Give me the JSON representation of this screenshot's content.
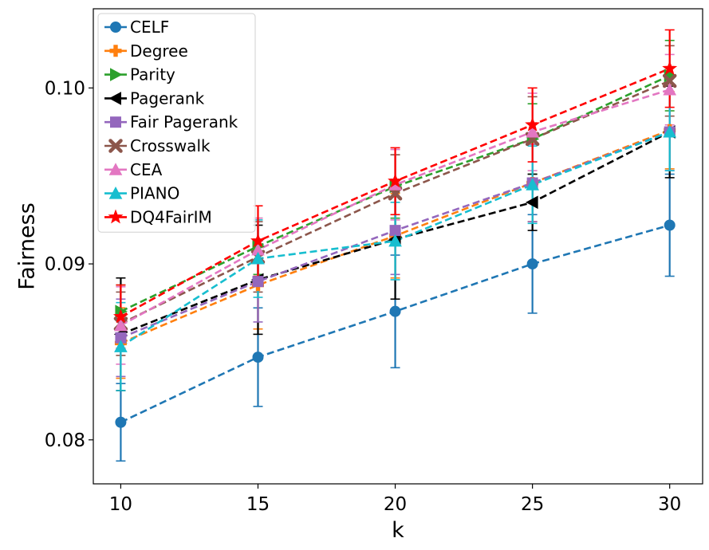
{
  "chart_data": {
    "type": "line",
    "title": "",
    "xlabel": "k",
    "ylabel": "Fairness",
    "x": [
      10,
      15,
      20,
      25,
      30
    ],
    "x_ticks": [
      10,
      15,
      20,
      25,
      30
    ],
    "y_ticks": [
      0.08,
      0.09,
      0.1
    ],
    "y_tick_labels": [
      "0.08",
      "0.09",
      "0.10"
    ],
    "xlim": [
      9.0,
      31.2
    ],
    "ylim": [
      0.0775,
      0.1045
    ],
    "legend_position": "top-left",
    "grid": false,
    "series": [
      {
        "name": "CELF",
        "color": "#1f77b4",
        "marker": "circle",
        "values": [
          0.081,
          0.0847,
          0.0873,
          0.09,
          0.0922
        ],
        "errors": [
          0.0022,
          0.0028,
          0.0032,
          0.0028,
          0.0029
        ]
      },
      {
        "name": "Degree",
        "color": "#ff7f0e",
        "marker": "plus",
        "values": [
          0.0855,
          0.0888,
          0.0916,
          0.0946,
          0.0976
        ],
        "errors": [
          0.002,
          0.0025,
          0.0024,
          0.0022,
          0.0022
        ]
      },
      {
        "name": "Parity",
        "color": "#2ca02c",
        "marker": "triangle-right",
        "values": [
          0.0873,
          0.091,
          0.0944,
          0.0971,
          0.1007
        ],
        "errors": [
          0.0015,
          0.0016,
          0.0018,
          0.002,
          0.002
        ]
      },
      {
        "name": "Pagerank",
        "color": "#000000",
        "marker": "triangle-left",
        "values": [
          0.086,
          0.0891,
          0.0914,
          0.0935,
          0.0975
        ],
        "errors": [
          0.0032,
          0.0031,
          0.0034,
          0.0016,
          0.0026
        ]
      },
      {
        "name": "Fair Pagerank",
        "color": "#9467bd",
        "marker": "square",
        "values": [
          0.0858,
          0.089,
          0.0919,
          0.0946,
          0.0975
        ],
        "errors": [
          0.0022,
          0.0023,
          0.0025,
          0.0022,
          0.0022
        ]
      },
      {
        "name": "Crosswalk",
        "color": "#8c564b",
        "marker": "x",
        "values": [
          0.0866,
          0.0904,
          0.094,
          0.0971,
          0.1004
        ],
        "errors": [
          0.0018,
          0.002,
          0.0022,
          0.0024,
          0.002
        ]
      },
      {
        "name": "CEA",
        "color": "#e377c2",
        "marker": "triangle-up",
        "values": [
          0.0865,
          0.0908,
          0.0945,
          0.0975,
          0.0999
        ],
        "errors": [
          0.0022,
          0.0018,
          0.002,
          0.0022,
          0.002
        ]
      },
      {
        "name": "PIANO",
        "color": "#17becf",
        "marker": "triangle-up",
        "values": [
          0.0853,
          0.0903,
          0.0913,
          0.0945,
          0.0975
        ],
        "errors": [
          0.0025,
          0.0022,
          0.0022,
          0.0022,
          0.0022
        ]
      },
      {
        "name": "DQ4FairIM",
        "color": "#ff0000",
        "marker": "star",
        "values": [
          0.087,
          0.0913,
          0.0947,
          0.0979,
          0.1011
        ],
        "errors": [
          0.0018,
          0.002,
          0.0019,
          0.0021,
          0.0022
        ]
      }
    ]
  }
}
